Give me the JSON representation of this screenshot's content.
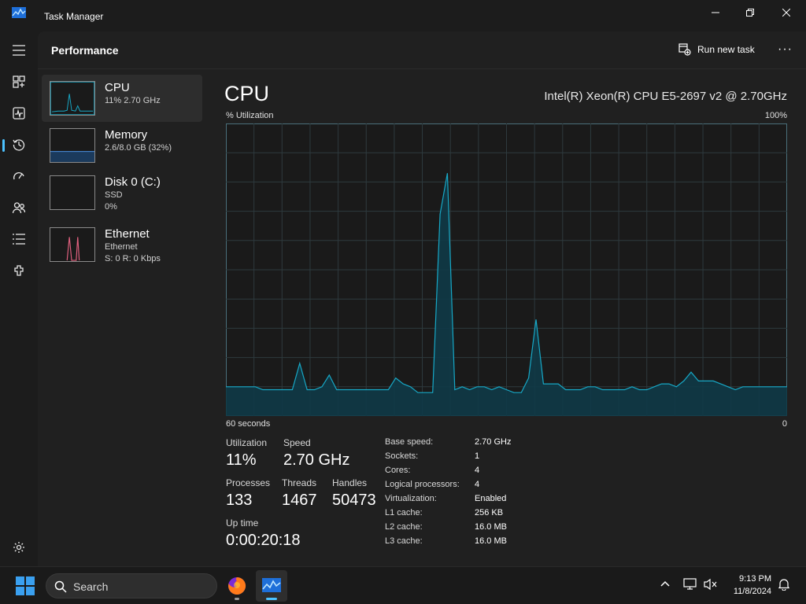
{
  "window": {
    "title": "Task Manager"
  },
  "header": {
    "page_title": "Performance",
    "run_new_task": "Run new task",
    "more": "···"
  },
  "nav": {
    "items": [
      "menu-icon",
      "processes-icon",
      "performance-icon",
      "app-history-icon",
      "startup-apps-icon",
      "users-icon",
      "details-icon",
      "services-icon",
      "settings-icon"
    ]
  },
  "sidebar": {
    "items": [
      {
        "name": "CPU",
        "sub1": "11%  2.70 GHz",
        "sub2": ""
      },
      {
        "name": "Memory",
        "sub1": "2.6/8.0 GB (32%)",
        "sub2": ""
      },
      {
        "name": "Disk 0 (C:)",
        "sub1": "SSD",
        "sub2": "0%"
      },
      {
        "name": "Ethernet",
        "sub1": "Ethernet",
        "sub2": "S: 0  R: 0 Kbps"
      }
    ]
  },
  "cpu": {
    "title": "CPU",
    "model": "Intel(R) Xeon(R) CPU E5-2697 v2 @ 2.70GHz",
    "util_label": "% Utilization",
    "util_max": "100%",
    "graph_left": "60 seconds",
    "graph_right": "0",
    "accent": "#17a8c6",
    "fill": "#0f3a47",
    "history": [
      10,
      10,
      10,
      10,
      10,
      9,
      9,
      9,
      9,
      9,
      18,
      9,
      9,
      10,
      14,
      9,
      9,
      9,
      9,
      9,
      9,
      9,
      9,
      13,
      11,
      10,
      8,
      8,
      8,
      69,
      83,
      9,
      10,
      9,
      10,
      10,
      9,
      10,
      9,
      8,
      8,
      13,
      33,
      11,
      11,
      11,
      9,
      9,
      9,
      10,
      10,
      9,
      9,
      9,
      9,
      10,
      9,
      9,
      10,
      11,
      11,
      10,
      12,
      15,
      12,
      12,
      12,
      11,
      10,
      9,
      10,
      10,
      10,
      10,
      10,
      10,
      10
    ]
  },
  "stats": {
    "utilization_label": "Utilization",
    "utilization_value": "11%",
    "speed_label": "Speed",
    "speed_value": "2.70 GHz",
    "processes_label": "Processes",
    "processes_value": "133",
    "threads_label": "Threads",
    "threads_value": "1467",
    "handles_label": "Handles",
    "handles_value": "50473",
    "uptime_label": "Up time",
    "uptime_value": "0:00:20:18"
  },
  "specs": [
    {
      "label": "Base speed:",
      "value": "2.70 GHz"
    },
    {
      "label": "Sockets:",
      "value": "1"
    },
    {
      "label": "Cores:",
      "value": "4"
    },
    {
      "label": "Logical processors:",
      "value": "4"
    },
    {
      "label": "Virtualization:",
      "value": "Enabled"
    },
    {
      "label": "L1 cache:",
      "value": "256 KB"
    },
    {
      "label": "L2 cache:",
      "value": "16.0 MB"
    },
    {
      "label": "L3 cache:",
      "value": "16.0 MB"
    }
  ],
  "taskbar": {
    "search_placeholder": "Search",
    "time": "9:13 PM",
    "date": "11/8/2024"
  }
}
